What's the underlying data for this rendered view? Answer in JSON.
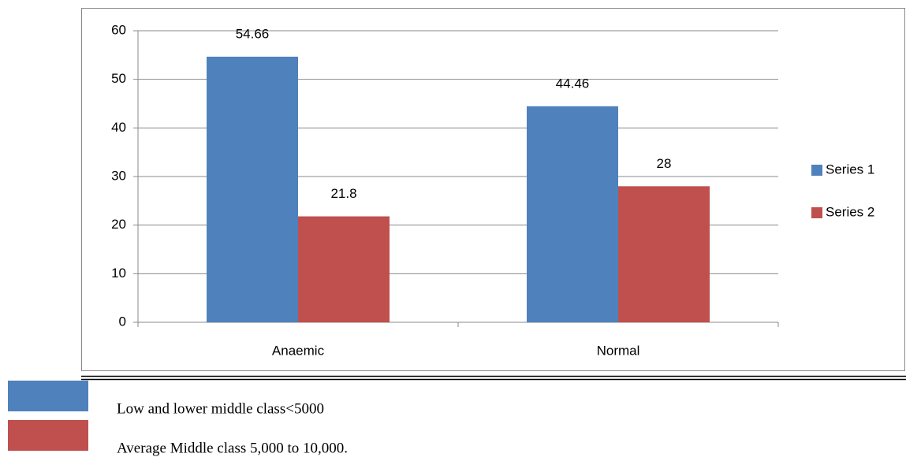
{
  "chart_data": {
    "type": "bar",
    "categories": [
      "Anaemic",
      "Normal"
    ],
    "series": [
      {
        "name": "Series 1",
        "color": "#4f81bd",
        "values": [
          54.66,
          44.46
        ]
      },
      {
        "name": "Series 2",
        "color": "#c0504d",
        "values": [
          21.8,
          28
        ]
      }
    ],
    "ylim": [
      0,
      60
    ],
    "yticks": [
      0,
      10,
      20,
      30,
      40,
      50,
      60
    ],
    "grid": true,
    "legend": "right"
  },
  "key": [
    {
      "color": "#4f81bd",
      "label": "Low and lower middle class<5000"
    },
    {
      "color": "#c0504d",
      "label": "Average Middle class 5,000 to 10,000."
    }
  ]
}
